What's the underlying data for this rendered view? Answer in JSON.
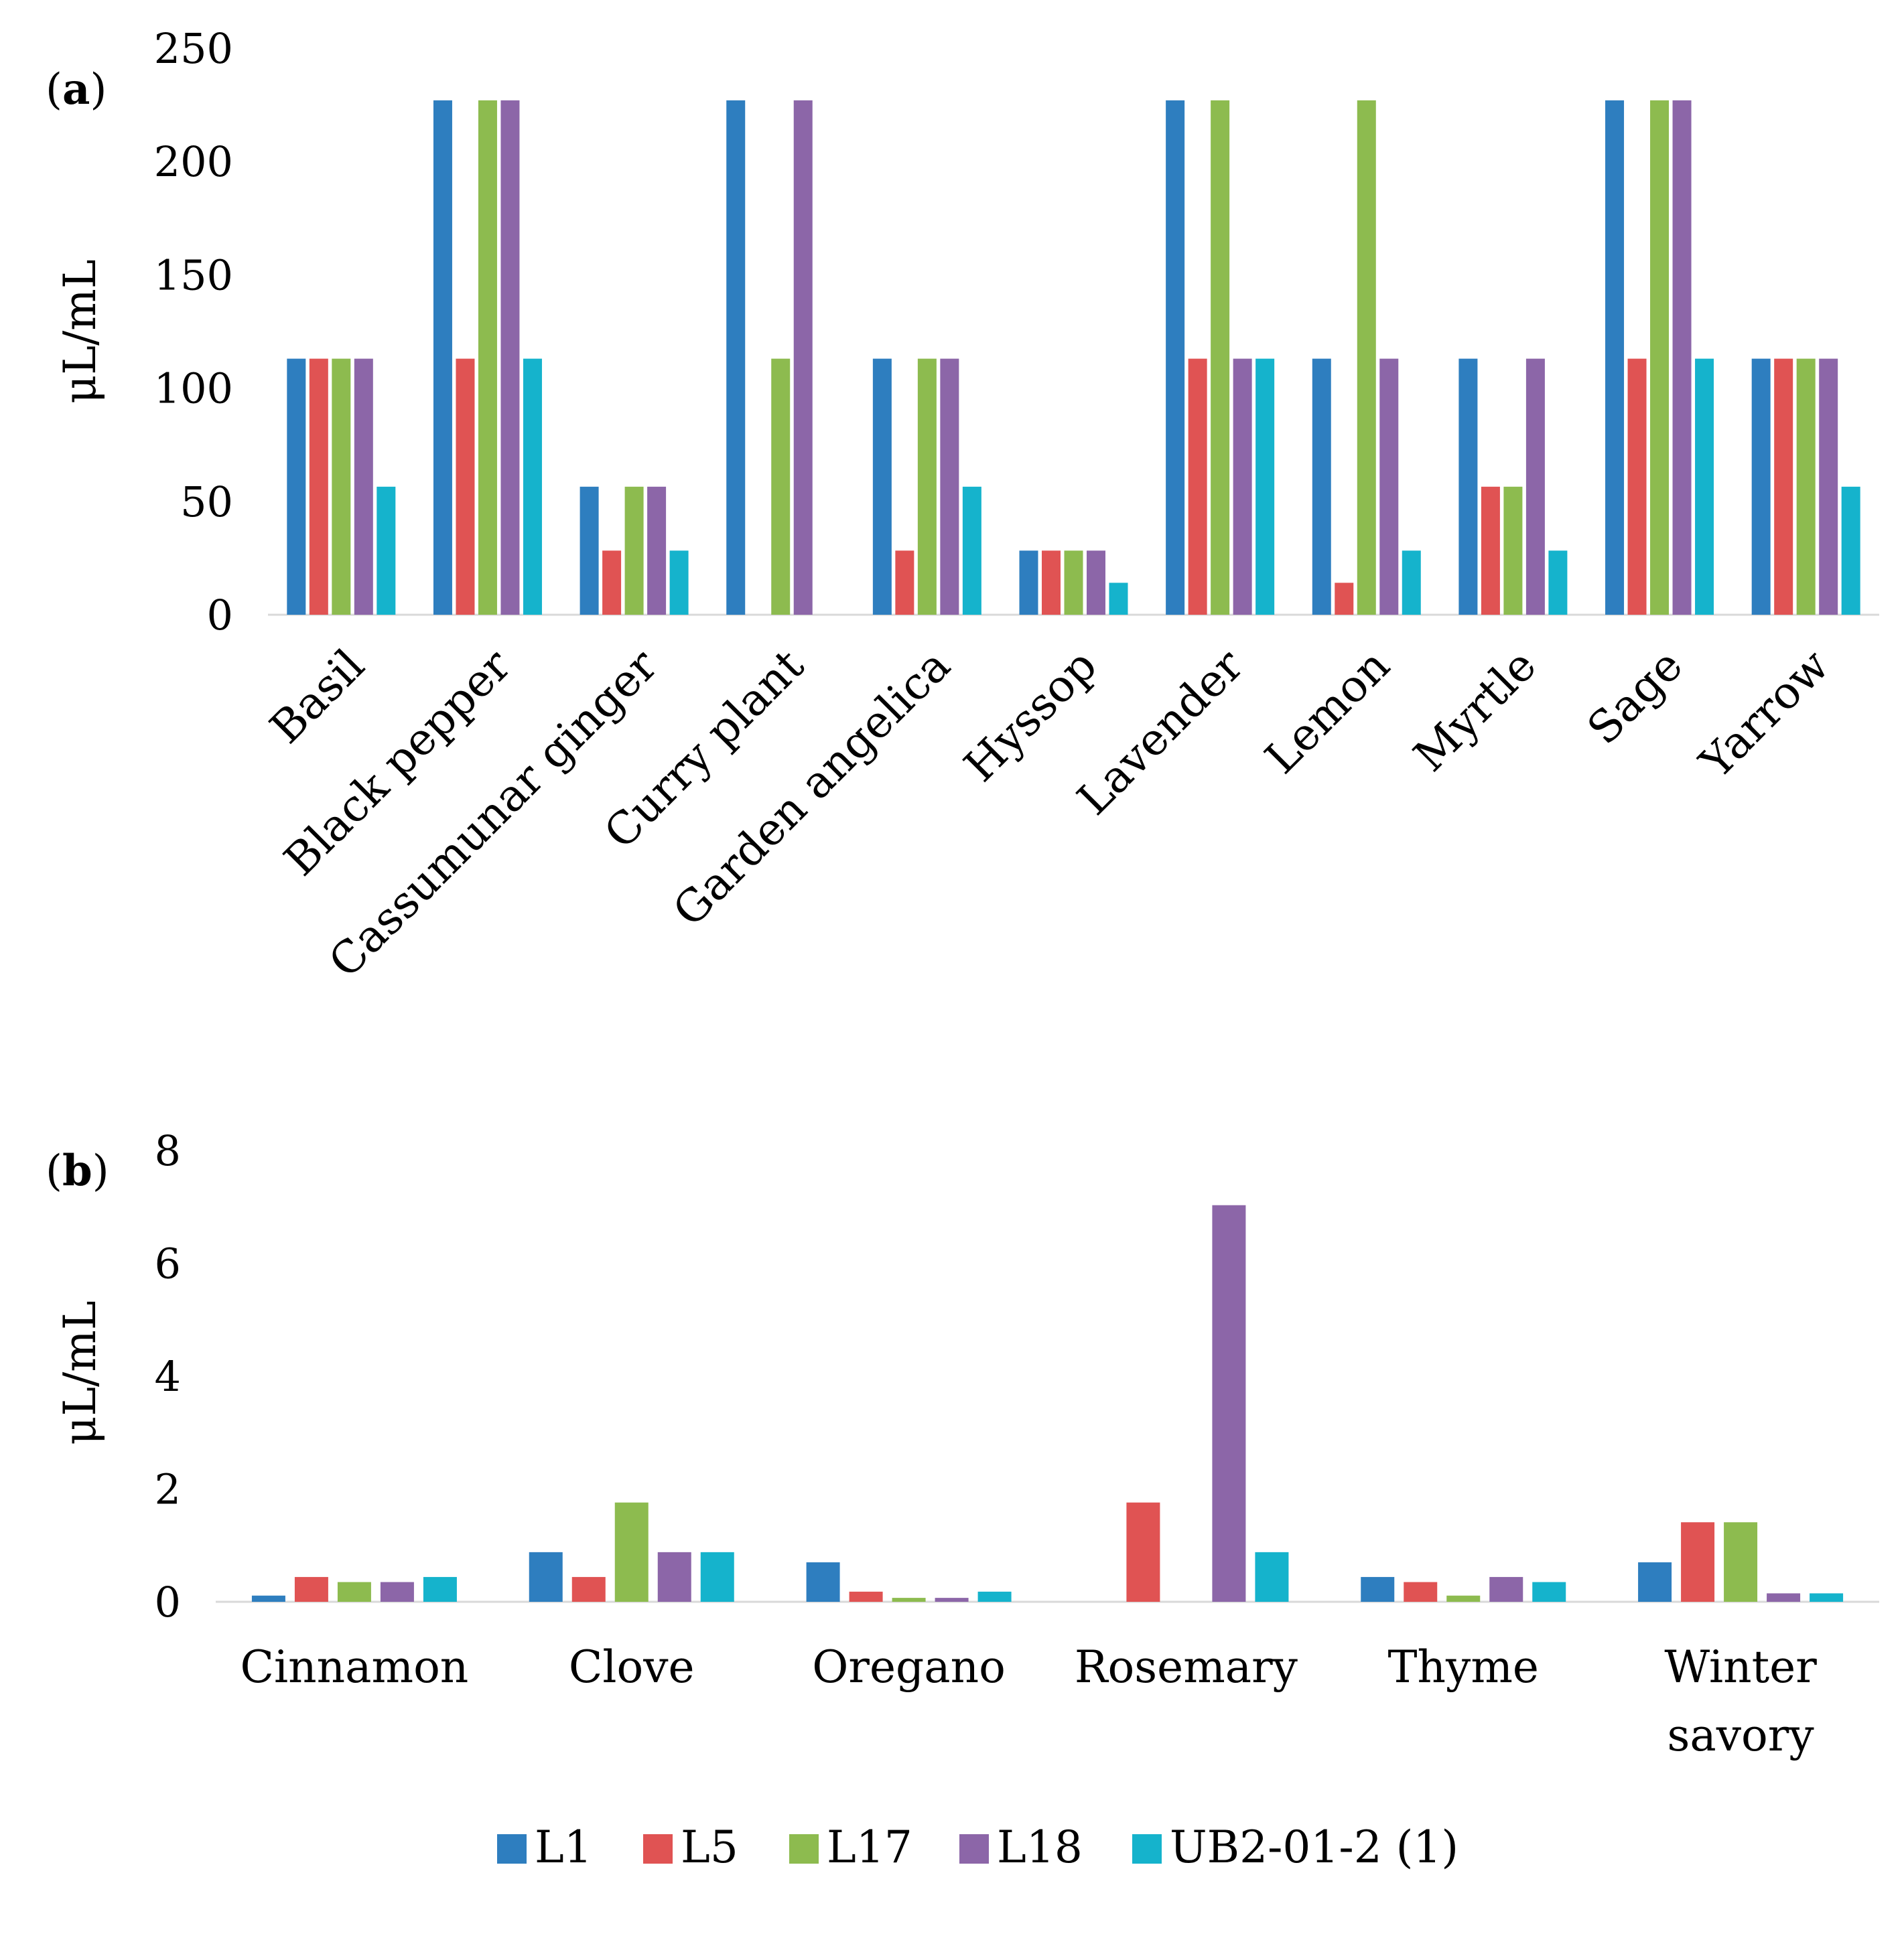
{
  "legend": [
    {
      "name": "L1",
      "color": "#2E7EBF"
    },
    {
      "name": "L5",
      "color": "#E05353"
    },
    {
      "name": "L17",
      "color": "#8DBB4F"
    },
    {
      "name": "L18",
      "color": "#8C66A8"
    },
    {
      "name": "UB2-01-2 (1)",
      "color": "#15B3CC"
    }
  ],
  "chart_data": [
    {
      "type": "bar",
      "panel": "a",
      "panel_label": "a",
      "ylabel": "μL/mL",
      "xlabel": "",
      "ylim": [
        0,
        250
      ],
      "yticks": [
        0,
        50,
        100,
        150,
        200,
        250
      ],
      "categories": [
        "Basil",
        "Black pepper",
        "Cassumunar ginger",
        "Curry plant",
        "Garden angelica",
        "Hyssop",
        "Lavender",
        "Lemon",
        "Myrtle",
        "Sage",
        "Yarrow"
      ],
      "series": [
        {
          "name": "L1",
          "values": [
            113,
            227,
            56.5,
            227,
            113,
            28.3,
            227,
            113,
            113,
            227,
            113
          ]
        },
        {
          "name": "L5",
          "values": [
            113,
            113,
            28.3,
            0,
            28.3,
            28.3,
            113,
            14.1,
            56.5,
            113,
            113
          ]
        },
        {
          "name": "L17",
          "values": [
            113,
            227,
            56.5,
            113,
            113,
            28.3,
            227,
            227,
            56.5,
            227,
            113
          ]
        },
        {
          "name": "L18",
          "values": [
            113,
            227,
            56.5,
            227,
            113,
            28.3,
            113,
            113,
            113,
            227,
            113
          ]
        },
        {
          "name": "UB2-01-2 (1)",
          "values": [
            56.5,
            113,
            28.3,
            0,
            56.5,
            14.1,
            113,
            28.3,
            28.3,
            113,
            56.5
          ]
        }
      ]
    },
    {
      "type": "bar",
      "panel": "b",
      "panel_label": "b",
      "ylabel": "μL/mL",
      "xlabel": "",
      "ylim": [
        0,
        8
      ],
      "yticks": [
        0,
        2,
        4,
        6,
        8
      ],
      "categories": [
        "Cinnamon",
        "Clove",
        "Oregano",
        "Rosemary",
        "Thyme",
        "Winter savory"
      ],
      "series": [
        {
          "name": "L1",
          "values": [
            0.11,
            0.88,
            0.7,
            0,
            0.44,
            0.7
          ]
        },
        {
          "name": "L5",
          "values": [
            0.44,
            0.44,
            0.18,
            1.76,
            0.35,
            1.41
          ]
        },
        {
          "name": "L17",
          "values": [
            0.35,
            1.76,
            0.07,
            0,
            0.11,
            1.41
          ]
        },
        {
          "name": "L18",
          "values": [
            0.35,
            0.88,
            0.07,
            7.03,
            0.44,
            0.15
          ]
        },
        {
          "name": "UB2-01-2 (1)",
          "values": [
            0.44,
            0.88,
            0.18,
            0.88,
            0.35,
            0.15
          ]
        }
      ]
    }
  ]
}
